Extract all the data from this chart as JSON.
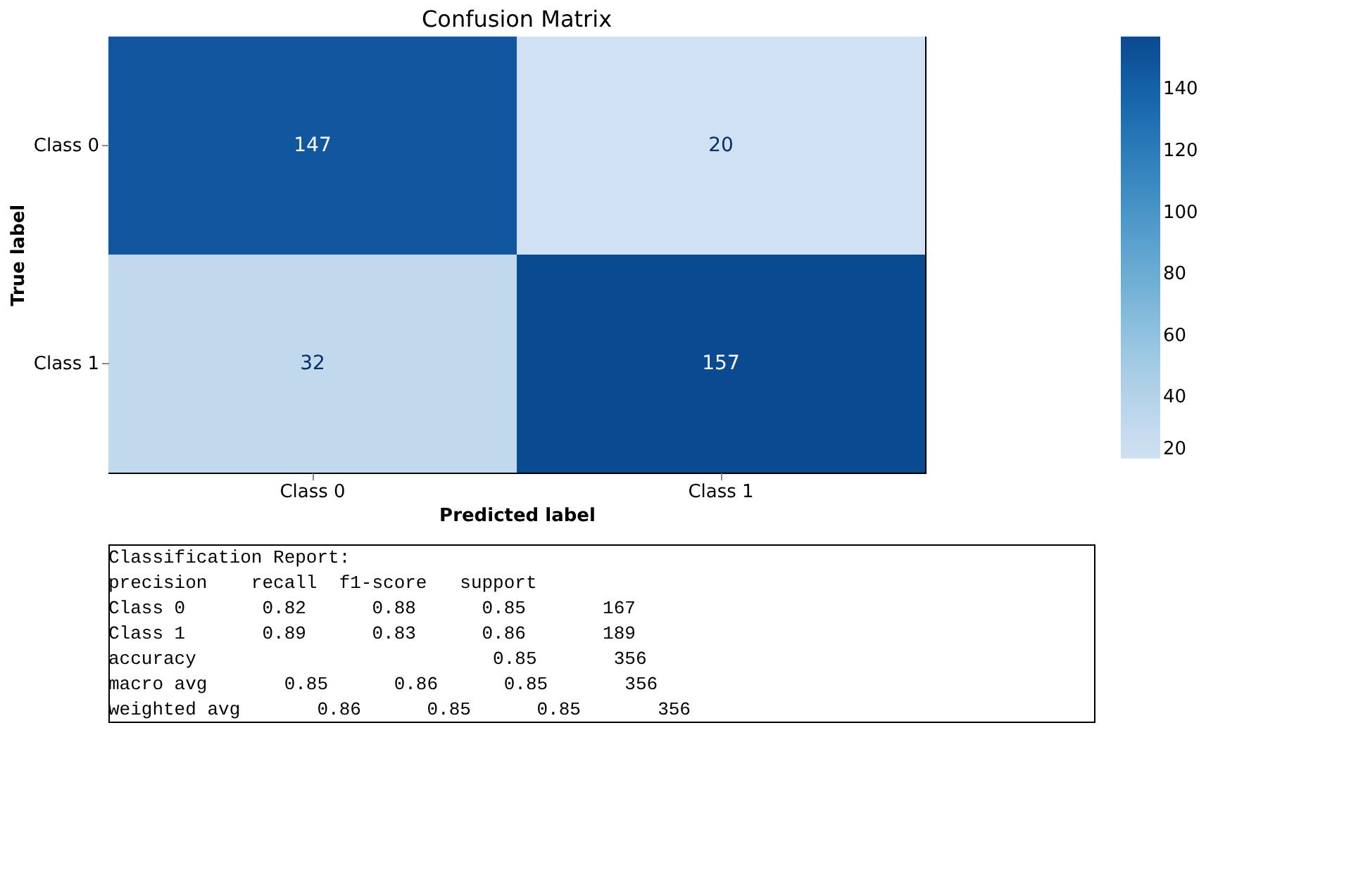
{
  "chart_data": {
    "type": "heatmap",
    "title": "Confusion Matrix",
    "xlabel": "Predicted label",
    "ylabel": "True label",
    "categories": [
      "Class 0",
      "Class 1"
    ],
    "y_categories": [
      "Class 0",
      "Class 1"
    ],
    "cells": [
      [
        147,
        20
      ],
      [
        32,
        157
      ]
    ],
    "data_labels": true,
    "clim": [
      20,
      157
    ],
    "cticks": [
      20,
      40,
      60,
      80,
      100,
      120,
      140
    ],
    "annotations": [
      "Classification Report:",
      "              precision    recall  f1-score   support",
      "     Class 0       0.82      0.88      0.85       167",
      "     Class 1       0.89      0.83      0.86       189",
      "    accuracy                           0.85       356",
      "   macro avg       0.85      0.86      0.85       356",
      "weighted avg       0.86      0.85      0.85       356"
    ]
  }
}
